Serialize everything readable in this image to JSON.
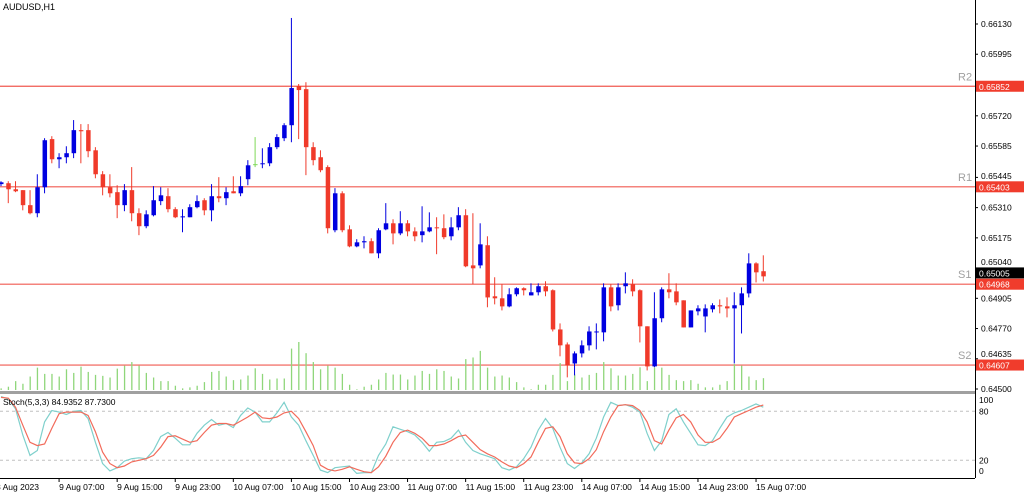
{
  "title": "AUDUSD,H1",
  "chart_data": {
    "type": "candlestick",
    "title": "AUDUSD,H1",
    "ylim": [
      0.645,
      0.6613
    ],
    "y_ticks": [
      "0.66130",
      "0.65995",
      "0.65720",
      "0.65585",
      "0.65445",
      "0.65310",
      "0.65175",
      "0.65040",
      "0.64905",
      "0.64770",
      "0.64635",
      "0.64500"
    ],
    "x_ticks": [
      {
        "label": "8 Aug 2023",
        "bar": 1
      },
      {
        "label": "9 Aug 07:00",
        "bar": 9
      },
      {
        "label": "9 Aug 15:00",
        "bar": 17
      },
      {
        "label": "9 Aug 23:00",
        "bar": 25
      },
      {
        "label": "10 Aug 07:00",
        "bar": 33
      },
      {
        "label": "10 Aug 15:00",
        "bar": 41
      },
      {
        "label": "10 Aug 23:00",
        "bar": 49
      },
      {
        "label": "11 Aug 07:00",
        "bar": 57
      },
      {
        "label": "11 Aug 15:00",
        "bar": 65
      },
      {
        "label": "11 Aug 23:00",
        "bar": 73
      },
      {
        "label": "14 Aug 07:00",
        "bar": 81
      },
      {
        "label": "14 Aug 15:00",
        "bar": 89
      },
      {
        "label": "14 Aug 23:00",
        "bar": 97
      },
      {
        "label": "15 Aug 07:00",
        "bar": 105
      }
    ],
    "levels": [
      {
        "name": "R2",
        "price": 0.65852,
        "label": "0.65852"
      },
      {
        "name": "R1",
        "price": 0.65403,
        "label": "0.65403"
      },
      {
        "name": "S1",
        "price": 0.64968,
        "label": "0.64968"
      },
      {
        "name": "S2",
        "price": 0.64607,
        "label": "0.64607"
      }
    ],
    "current_price": {
      "price": 0.65005,
      "label": "0.65005"
    },
    "ohlc": [
      [
        0.65415,
        0.65428,
        0.65406,
        0.65423
      ],
      [
        0.65419,
        0.65428,
        0.6533,
        0.65392
      ],
      [
        0.65392,
        0.65428,
        0.65379,
        0.65383
      ],
      [
        0.65388,
        0.65388,
        0.65298,
        0.65321
      ],
      [
        0.65321,
        0.65388,
        0.6528,
        0.65285
      ],
      [
        0.65285,
        0.65459,
        0.65267,
        0.65401
      ],
      [
        0.65401,
        0.6562,
        0.65374,
        0.65611
      ],
      [
        0.65616,
        0.65629,
        0.65508,
        0.65526
      ],
      [
        0.65526,
        0.65553,
        0.65486,
        0.65535
      ],
      [
        0.65535,
        0.65584,
        0.65508,
        0.65553
      ],
      [
        0.65553,
        0.65701,
        0.65531,
        0.65656
      ],
      [
        0.65656,
        0.65683,
        0.65508,
        0.65651
      ],
      [
        0.65656,
        0.65683,
        0.65535,
        0.65562
      ],
      [
        0.65566,
        0.6558,
        0.65441,
        0.65459
      ],
      [
        0.65459,
        0.65473,
        0.65365,
        0.65401
      ],
      [
        0.65401,
        0.65459,
        0.65356,
        0.65374
      ],
      [
        0.65379,
        0.6541,
        0.65263,
        0.65321
      ],
      [
        0.65321,
        0.65415,
        0.65294,
        0.65388
      ],
      [
        0.65388,
        0.65491,
        0.65249,
        0.65285
      ],
      [
        0.65285,
        0.65307,
        0.65187,
        0.65227
      ],
      [
        0.65227,
        0.65298,
        0.65218,
        0.6528
      ],
      [
        0.65276,
        0.65406,
        0.65271,
        0.65343
      ],
      [
        0.65339,
        0.65401,
        0.65321,
        0.65365
      ],
      [
        0.65361,
        0.65397,
        0.65289,
        0.65303
      ],
      [
        0.65303,
        0.65312,
        0.65263,
        0.65267
      ],
      [
        0.65267,
        0.65303,
        0.652,
        0.65271
      ],
      [
        0.65267,
        0.65325,
        0.65267,
        0.65312
      ],
      [
        0.65312,
        0.65365,
        0.65307,
        0.65339
      ],
      [
        0.65343,
        0.65352,
        0.65276,
        0.65298
      ],
      [
        0.65298,
        0.65415,
        0.65249,
        0.65361
      ],
      [
        0.65361,
        0.65446,
        0.65334,
        0.65352
      ],
      [
        0.65352,
        0.65401,
        0.65321,
        0.65379
      ],
      [
        0.65383,
        0.6545,
        0.65374,
        0.65374
      ],
      [
        0.65374,
        0.6545,
        0.65361,
        0.65406
      ],
      [
        0.65437,
        0.65522,
        0.6541,
        0.65499
      ],
      [
        0.65504,
        0.65625,
        0.65491,
        0.65504
      ],
      [
        0.65504,
        0.65575,
        0.65486,
        0.65508
      ],
      [
        0.65508,
        0.65598,
        0.65495,
        0.6558
      ],
      [
        0.6558,
        0.65638,
        0.65571,
        0.65625
      ],
      [
        0.6562,
        0.65687,
        0.65607,
        0.65678
      ],
      [
        0.65678,
        0.66157,
        0.65602,
        0.65844
      ],
      [
        0.65853,
        0.65862,
        0.65616,
        0.65835
      ],
      [
        0.65839,
        0.6587,
        0.65455,
        0.6558
      ],
      [
        0.6558,
        0.65602,
        0.65499,
        0.65522
      ],
      [
        0.65535,
        0.65566,
        0.65468,
        0.65477
      ],
      [
        0.65491,
        0.65499,
        0.65195,
        0.65218
      ],
      [
        0.65209,
        0.65397,
        0.652,
        0.65374
      ],
      [
        0.65374,
        0.65383,
        0.652,
        0.65209
      ],
      [
        0.65213,
        0.65231,
        0.65133,
        0.65137
      ],
      [
        0.65137,
        0.65169,
        0.65133,
        0.65155
      ],
      [
        0.65155,
        0.65182,
        0.65128,
        0.6516
      ],
      [
        0.6516,
        0.65173,
        0.65106,
        0.65106
      ],
      [
        0.65106,
        0.65218,
        0.65084,
        0.65209
      ],
      [
        0.65213,
        0.6533,
        0.65209,
        0.6524
      ],
      [
        0.6524,
        0.65258,
        0.65146,
        0.65195
      ],
      [
        0.65195,
        0.65294,
        0.65187,
        0.6524
      ],
      [
        0.6524,
        0.65254,
        0.65182,
        0.65204
      ],
      [
        0.65204,
        0.65222,
        0.6516,
        0.65182
      ],
      [
        0.65187,
        0.65316,
        0.65155,
        0.65204
      ],
      [
        0.65204,
        0.65289,
        0.652,
        0.65222
      ],
      [
        0.65222,
        0.65267,
        0.65102,
        0.65218
      ],
      [
        0.65218,
        0.6528,
        0.65169,
        0.65178
      ],
      [
        0.65182,
        0.65267,
        0.65164,
        0.65222
      ],
      [
        0.65222,
        0.65312,
        0.65209,
        0.65276
      ],
      [
        0.65276,
        0.65303,
        0.65044,
        0.65048
      ],
      [
        0.65052,
        0.65285,
        0.64968,
        0.65039
      ],
      [
        0.65052,
        0.6524,
        0.65039,
        0.65146
      ],
      [
        0.65142,
        0.65182,
        0.64865,
        0.64909
      ],
      [
        0.64914,
        0.64999,
        0.64878,
        0.64905
      ],
      [
        0.64905,
        0.64968,
        0.64851,
        0.64869
      ],
      [
        0.64869,
        0.6495,
        0.64865,
        0.64923
      ],
      [
        0.64923,
        0.64954,
        0.64914,
        0.6495
      ],
      [
        0.6495,
        0.64954,
        0.64918,
        0.64941
      ],
      [
        0.64918,
        0.64972,
        0.64918,
        0.64932
      ],
      [
        0.64932,
        0.64972,
        0.64918,
        0.64959
      ],
      [
        0.64959,
        0.64981,
        0.64914,
        0.64936
      ],
      [
        0.64941,
        0.64945,
        0.64757,
        0.64766
      ],
      [
        0.64766,
        0.64793,
        0.64646,
        0.64695
      ],
      [
        0.64699,
        0.64708,
        0.64552,
        0.64605
      ],
      [
        0.64614,
        0.64668,
        0.64561,
        0.64659
      ],
      [
        0.64659,
        0.64717,
        0.64641,
        0.64695
      ],
      [
        0.64695,
        0.6478,
        0.64672,
        0.64757
      ],
      [
        0.64753,
        0.64793,
        0.64677,
        0.64757
      ],
      [
        0.64753,
        0.64972,
        0.64713,
        0.64954
      ],
      [
        0.64954,
        0.64968,
        0.64847,
        0.64869
      ],
      [
        0.64874,
        0.64972,
        0.64851,
        0.64954
      ],
      [
        0.64959,
        0.65021,
        0.64927,
        0.64972
      ],
      [
        0.64968,
        0.6499,
        0.64914,
        0.64936
      ],
      [
        0.64941,
        0.64945,
        0.64708,
        0.6478
      ],
      [
        0.6478,
        0.6478,
        0.64583,
        0.64601
      ],
      [
        0.64601,
        0.64932,
        0.64597,
        0.64816
      ],
      [
        0.64816,
        0.64954,
        0.64798,
        0.64945
      ],
      [
        0.64945,
        0.65017,
        0.64905,
        0.64932
      ],
      [
        0.64936,
        0.64972,
        0.64874,
        0.64887
      ],
      [
        0.64896,
        0.64896,
        0.64775,
        0.64775
      ],
      [
        0.64775,
        0.64851,
        0.64775,
        0.64851
      ],
      [
        0.64847,
        0.64874,
        0.64829,
        0.6486
      ],
      [
        0.64824,
        0.64878,
        0.64753,
        0.6486
      ],
      [
        0.64856,
        0.64883,
        0.64842,
        0.64874
      ],
      [
        0.64874,
        0.649,
        0.64838,
        0.64869
      ],
      [
        0.64869,
        0.64909,
        0.6482,
        0.6486
      ],
      [
        0.6486,
        0.64932,
        0.64614,
        0.64874
      ],
      [
        0.64874,
        0.64954,
        0.64748,
        0.64927
      ],
      [
        0.64927,
        0.65106,
        0.64909,
        0.65061
      ],
      [
        0.65061,
        0.65066,
        0.64976,
        0.65021
      ],
      [
        0.65026,
        0.65097,
        0.6498,
        0.65003
      ]
    ],
    "volume": [
      5,
      10,
      27,
      19,
      41,
      68,
      49,
      49,
      41,
      63,
      52,
      71,
      55,
      46,
      43,
      38,
      65,
      74,
      85,
      74,
      52,
      38,
      27,
      27,
      13,
      5,
      8,
      13,
      24,
      55,
      58,
      41,
      30,
      32,
      44,
      66,
      49,
      32,
      35,
      35,
      126,
      146,
      112,
      85,
      63,
      74,
      68,
      49,
      16,
      2,
      10,
      16,
      32,
      52,
      47,
      47,
      32,
      44,
      58,
      49,
      63,
      58,
      41,
      35,
      94,
      99,
      119,
      68,
      41,
      44,
      38,
      24,
      8,
      2,
      16,
      16,
      46,
      82,
      27,
      47,
      38,
      46,
      52,
      85,
      66,
      44,
      44,
      49,
      69,
      27,
      68,
      68,
      46,
      30,
      27,
      30,
      19,
      8,
      8,
      16,
      27,
      79,
      74,
      41,
      30,
      36
    ],
    "stochastic": {
      "label": "Stoch(5,3,3) 84.9352 87.7300",
      "ylim": [
        0,
        100
      ],
      "levels": [
        "100",
        "80",
        "20",
        "0"
      ],
      "k": [
        98,
        95,
        83,
        51,
        26,
        32,
        67,
        81,
        79,
        76,
        80,
        81,
        71,
        42,
        16,
        7,
        11,
        19,
        22,
        23,
        22,
        32,
        49,
        54,
        47,
        39,
        39,
        53,
        63,
        70,
        63,
        65,
        60,
        75,
        84,
        79,
        67,
        67,
        78,
        91,
        73,
        63,
        44,
        26,
        8,
        5,
        11,
        12,
        13,
        4,
        5,
        5,
        26,
        40,
        61,
        58,
        55,
        51,
        42,
        31,
        42,
        43,
        47,
        57,
        42,
        32,
        28,
        25,
        22,
        11,
        8,
        12,
        22,
        36,
        57,
        71,
        59,
        36,
        16,
        10,
        17,
        28,
        47,
        73,
        91,
        87,
        88,
        85,
        79,
        53,
        32,
        44,
        76,
        83,
        67,
        53,
        39,
        38,
        44,
        59,
        73,
        78,
        81,
        85,
        89,
        84.94
      ],
      "d": [
        97,
        96,
        85,
        63,
        42,
        38,
        40,
        59,
        77,
        79,
        79,
        79,
        75,
        55,
        30,
        16,
        11,
        13,
        18,
        20,
        22,
        26,
        36,
        49,
        50,
        46,
        42,
        44,
        54,
        63,
        65,
        65,
        63,
        68,
        73,
        79,
        72,
        71,
        73,
        78,
        80,
        71,
        55,
        38,
        14,
        9,
        7,
        9,
        12,
        9,
        6,
        5,
        12,
        25,
        42,
        54,
        57,
        53,
        47,
        38,
        38,
        40,
        44,
        49,
        51,
        42,
        33,
        28,
        24,
        18,
        13,
        11,
        16,
        24,
        42,
        59,
        61,
        49,
        28,
        17,
        16,
        22,
        33,
        55,
        73,
        87,
        88,
        87,
        81,
        67,
        44,
        40,
        57,
        72,
        76,
        67,
        51,
        42,
        42,
        47,
        59,
        73,
        77,
        81,
        85,
        87.73
      ]
    },
    "colors": {
      "bull": "#0000e0",
      "bear": "#f03a2a",
      "doji": "#7ed957",
      "level_line": "#f05a50",
      "level_label_bg": "#f03c2c",
      "volume": "#8fd67a",
      "stoch_k": "#7fd0cc",
      "stoch_d": "#f26b5b",
      "current_price_bg": "#000000"
    }
  }
}
